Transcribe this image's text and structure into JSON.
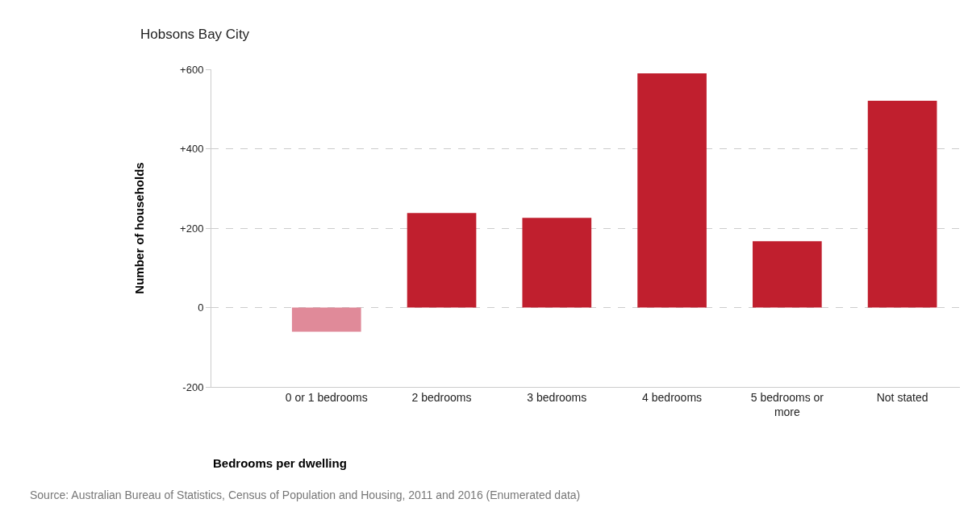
{
  "chart_data": {
    "type": "bar",
    "title": "Hobsons Bay City",
    "xlabel": "Bedrooms per dwelling",
    "ylabel": "Number of households",
    "categories": [
      "0 or 1 bedrooms",
      "2 bedrooms",
      "3 bedrooms",
      "4 bedrooms",
      "5 bedrooms or more",
      "Not stated"
    ],
    "values": [
      -61,
      238,
      226,
      590,
      167,
      521
    ],
    "colors": [
      "#e08a99",
      "#c01f2e",
      "#c01f2e",
      "#c01f2e",
      "#c01f2e",
      "#c01f2e"
    ],
    "ylim": [
      -200,
      600
    ],
    "yticks": [
      {
        "value": -200,
        "label": "-200"
      },
      0,
      {
        "value": 200,
        "label": "+200"
      },
      {
        "value": 400,
        "label": "+400"
      },
      {
        "value": 600,
        "label": "+600"
      }
    ],
    "grid": "y",
    "annotations": [
      "Source: Australian Bureau of Statistics, Census of Population and Housing, 2011 and 2016 (Enumerated data)"
    ]
  }
}
